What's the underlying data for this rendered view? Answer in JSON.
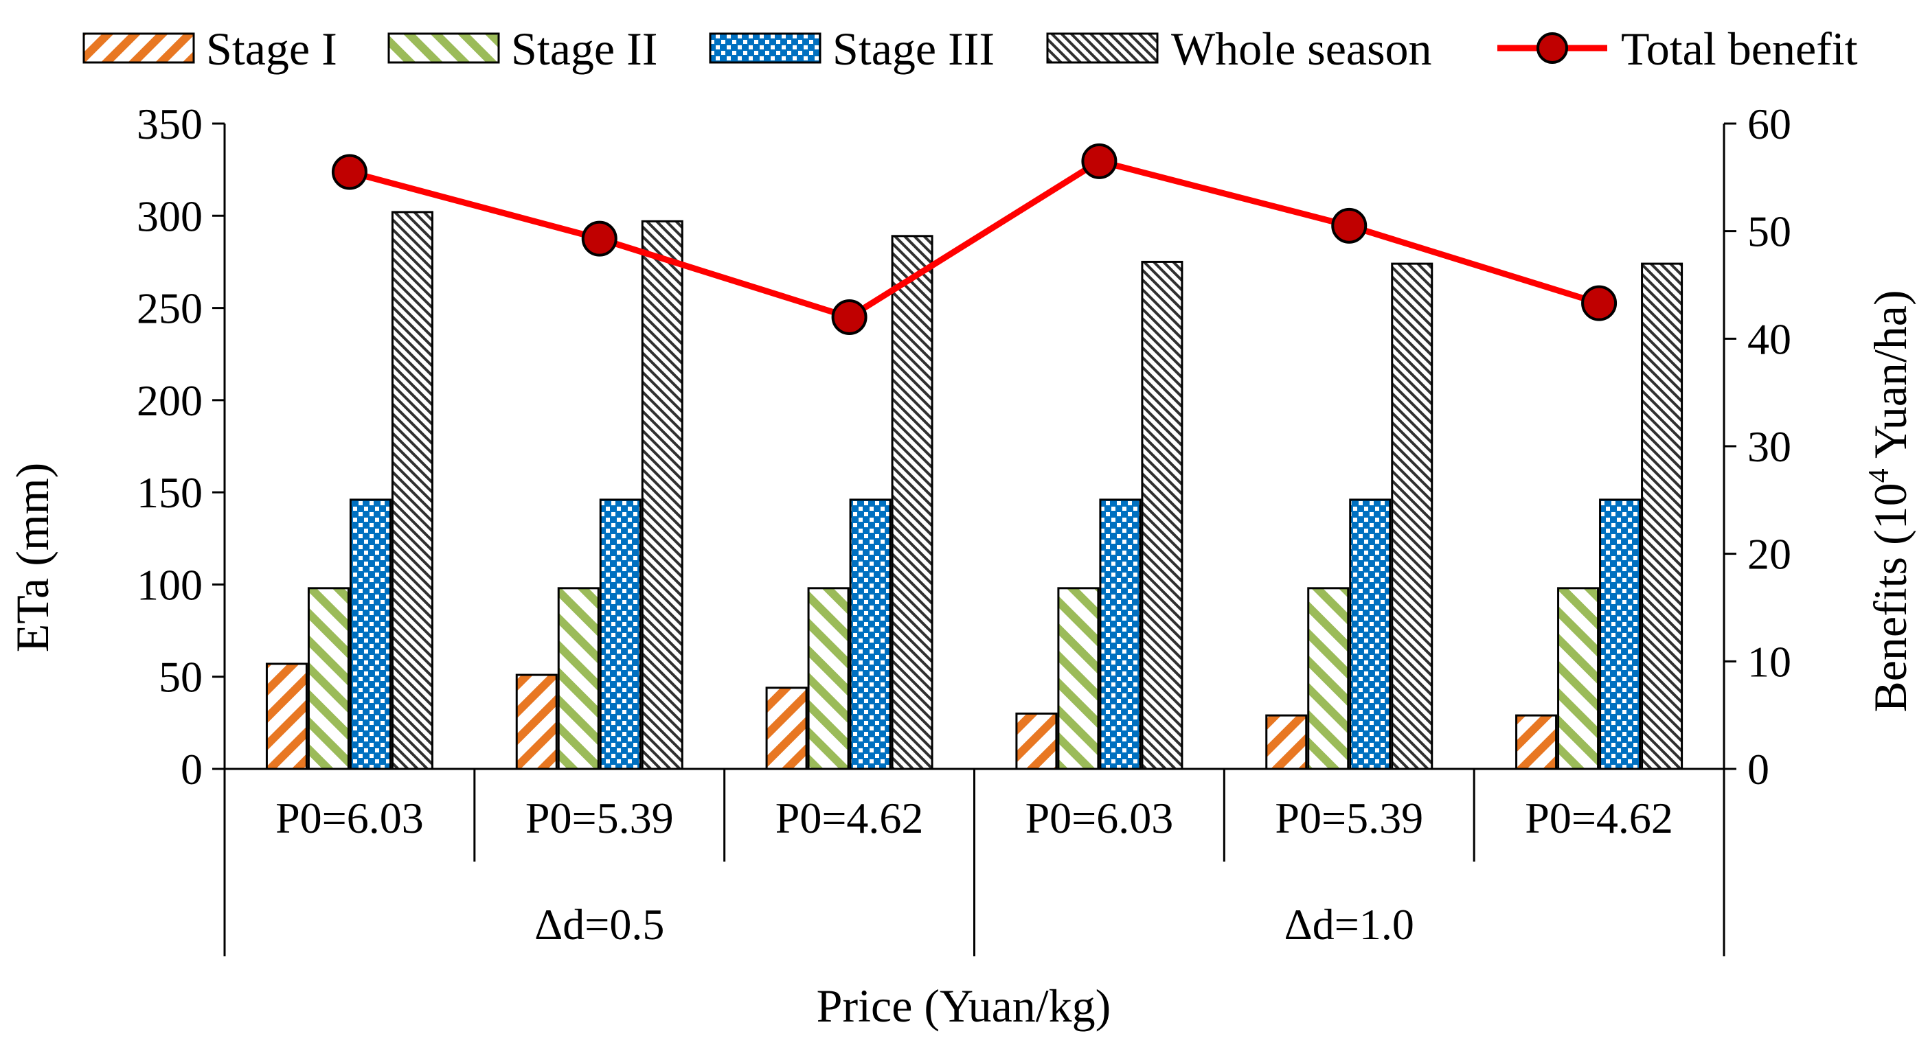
{
  "chart_data": {
    "type": "bar",
    "groups": [
      "Δd=0.5",
      "Δd=1.0"
    ],
    "categories": [
      "P0=6.03",
      "P0=5.39",
      "P0=4.62",
      "P0=6.03",
      "P0=5.39",
      "P0=4.62"
    ],
    "xlabel": "Price (Yuan/kg)",
    "ylabel": "ETa (mm)",
    "ylim": [
      0,
      350
    ],
    "yticks": [
      "0",
      "50",
      "100",
      "150",
      "200",
      "250",
      "300",
      "350"
    ],
    "y2label_main": "Benefits (10",
    "y2label_sup": "4",
    "y2label_tail": " Yuan/ha)",
    "y2lim": [
      0,
      60
    ],
    "y2ticks": [
      "0",
      "10",
      "20",
      "30",
      "40",
      "50",
      "60"
    ],
    "series": [
      {
        "name": "Stage I",
        "kind": "bar",
        "color": "#E87722",
        "pattern": "diagonal",
        "values": [
          57,
          51,
          44,
          30,
          29,
          29
        ]
      },
      {
        "name": "Stage II",
        "kind": "bar",
        "color": "#9BBB59",
        "pattern": "diagonal",
        "values": [
          98,
          98,
          98,
          98,
          98,
          98
        ]
      },
      {
        "name": "Stage III",
        "kind": "bar",
        "color": "#0070C0",
        "pattern": "dots",
        "values": [
          146,
          146,
          146,
          146,
          146,
          146
        ]
      },
      {
        "name": "Whole season",
        "kind": "bar",
        "color": "#404040",
        "pattern": "fine-diagonal",
        "values": [
          302,
          297,
          289,
          275,
          274,
          274
        ]
      },
      {
        "name": "Total benefit",
        "kind": "line",
        "axis": "right",
        "color": "#FF0000",
        "marker_color": "#C00000",
        "values": [
          55.5,
          49.3,
          42.0,
          56.5,
          50.5,
          43.3
        ]
      }
    ]
  }
}
